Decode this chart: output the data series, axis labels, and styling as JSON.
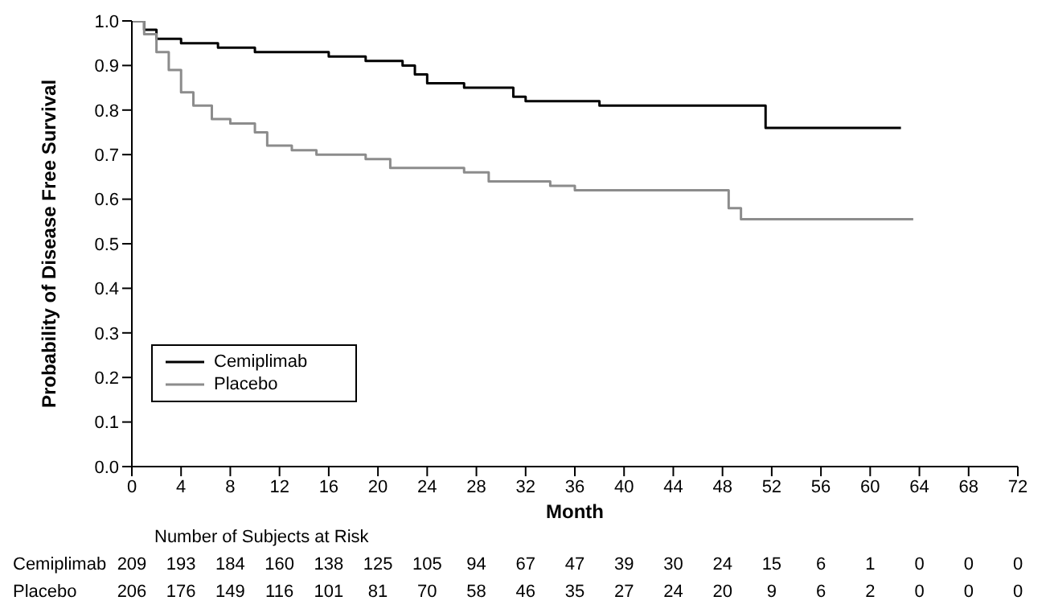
{
  "chart_data": {
    "type": "step",
    "xlabel": "Month",
    "ylabel": "Probability of Disease Free Survival",
    "xlim": [
      0,
      72
    ],
    "xticks": [
      0,
      4,
      8,
      12,
      16,
      20,
      24,
      28,
      32,
      36,
      40,
      44,
      48,
      52,
      56,
      60,
      64,
      68,
      72
    ],
    "ylim": [
      0,
      1
    ],
    "yticks": [
      {
        "value": 0,
        "label": "0.0"
      },
      {
        "value": 0.1,
        "label": "0.1"
      },
      {
        "value": 0.2,
        "label": "0.2"
      },
      {
        "value": 0.3,
        "label": "0.3"
      },
      {
        "value": 0.4,
        "label": "0.4"
      },
      {
        "value": 0.5,
        "label": "0.5"
      },
      {
        "value": 0.6,
        "label": "0.6"
      },
      {
        "value": 0.7,
        "label": "0.7"
      },
      {
        "value": 0.8,
        "label": "0.8"
      },
      {
        "value": 0.9,
        "label": "0.9"
      },
      {
        "value": 1,
        "label": "1.0"
      }
    ],
    "grid": false,
    "legend": "bottom left",
    "marker": "none",
    "line_style": "solid",
    "series": [
      {
        "name": "Cemiplimab",
        "color": "#000000",
        "x": [
          0,
          1,
          2,
          4,
          7,
          10,
          16,
          19,
          22,
          23,
          24,
          27,
          31,
          32,
          38,
          51.5,
          62.5
        ],
        "values": [
          1,
          0.98,
          0.96,
          0.95,
          0.94,
          0.93,
          0.92,
          0.91,
          0.9,
          0.88,
          0.86,
          0.85,
          0.83,
          0.82,
          0.81,
          0.76,
          0.76
        ]
      },
      {
        "name": "Placebo",
        "color": "#8c8c8c",
        "x": [
          0,
          1,
          2,
          3,
          4,
          5,
          6.5,
          8,
          10,
          11,
          13,
          15,
          19,
          21,
          27,
          29,
          34,
          36,
          48.5,
          49.5,
          63.5
        ],
        "values": [
          1,
          0.97,
          0.93,
          0.89,
          0.84,
          0.81,
          0.78,
          0.77,
          0.75,
          0.72,
          0.71,
          0.7,
          0.69,
          0.67,
          0.66,
          0.64,
          0.63,
          0.62,
          0.58,
          0.555,
          0.555
        ]
      }
    ],
    "annotations": [
      "Number of Subjects at Risk",
      "209 193 184 160 138 125 105 94 67 47 39 30 24 15 6 1 0 0 0",
      "206 176 149 116 101 81 70 58 46 35 27 24 20 9 6 2 0 0 0"
    ]
  }
}
